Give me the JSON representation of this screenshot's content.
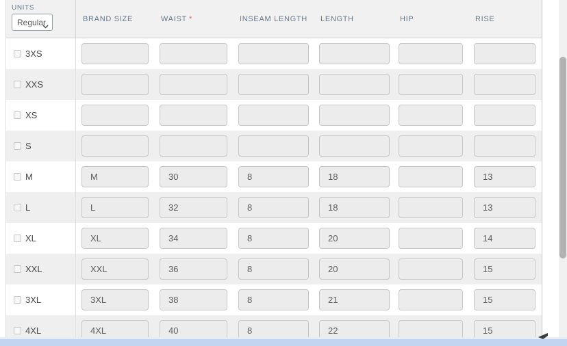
{
  "units": {
    "label": "UNITS",
    "value": "Regular"
  },
  "columns": [
    {
      "label": "BRAND SIZE",
      "required": false
    },
    {
      "label": "WAIST",
      "required": true
    },
    {
      "label": "INSEAM LENGTH",
      "required": false
    },
    {
      "label": "LENGTH",
      "required": false
    },
    {
      "label": "HIP",
      "required": false
    },
    {
      "label": "RISE",
      "required": false
    }
  ],
  "rows": [
    {
      "size": "3XS",
      "checked": false,
      "values": [
        "",
        "",
        "",
        "",
        "",
        ""
      ]
    },
    {
      "size": "XXS",
      "checked": false,
      "values": [
        "",
        "",
        "",
        "",
        "",
        ""
      ]
    },
    {
      "size": "XS",
      "checked": false,
      "values": [
        "",
        "",
        "",
        "",
        "",
        ""
      ]
    },
    {
      "size": "S",
      "checked": false,
      "values": [
        "",
        "",
        "",
        "",
        "",
        ""
      ]
    },
    {
      "size": "M",
      "checked": false,
      "values": [
        "M",
        "30",
        "8",
        "18",
        "",
        "13"
      ]
    },
    {
      "size": "L",
      "checked": false,
      "values": [
        "L",
        "32",
        "8",
        "18",
        "",
        "13"
      ]
    },
    {
      "size": "XL",
      "checked": false,
      "values": [
        "XL",
        "34",
        "8",
        "20",
        "",
        "14"
      ]
    },
    {
      "size": "XXL",
      "checked": false,
      "values": [
        "XXL",
        "36",
        "8",
        "20",
        "",
        "15"
      ]
    },
    {
      "size": "3XL",
      "checked": false,
      "values": [
        "3XL",
        "38",
        "8",
        "21",
        "",
        "15"
      ]
    },
    {
      "size": "4XL",
      "checked": false,
      "values": [
        "4XL",
        "40",
        "8",
        "22",
        "",
        "15"
      ]
    }
  ],
  "colors": {
    "required_asterisk": "#e05c5c",
    "header_text": "#66788a",
    "horizontal_scrollbar": "#c2d5f0",
    "vertical_scroll_thumb": "#b2b2b2"
  }
}
